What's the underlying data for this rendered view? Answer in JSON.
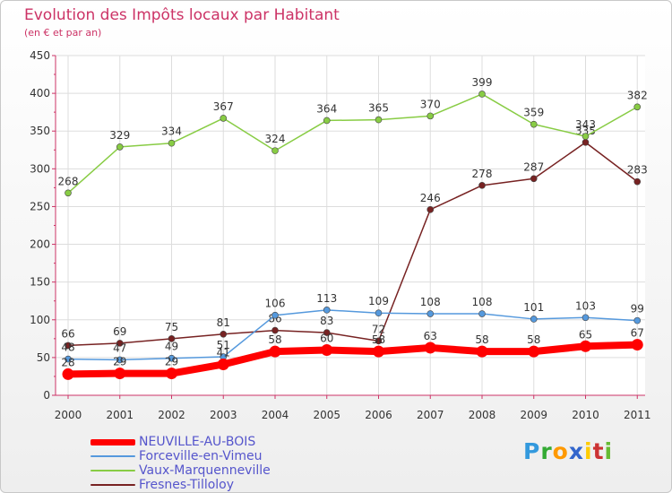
{
  "chart_data": {
    "type": "line",
    "title": "Evolution des Impôts locaux par Habitant",
    "subtitle": "(en € et par an)",
    "x": [
      "2000",
      "2001",
      "2002",
      "2003",
      "2004",
      "2005",
      "2006",
      "2007",
      "2008",
      "2009",
      "2010",
      "2011"
    ],
    "ylim": [
      0,
      450
    ],
    "yticks": [
      0,
      50,
      100,
      150,
      200,
      250,
      300,
      350,
      400,
      450
    ],
    "grid": true,
    "legend_position": "bottom-left",
    "series": [
      {
        "name": "NEUVILLE-AU-BOIS",
        "color": "#ff0000",
        "values": [
          28,
          29,
          29,
          41,
          58,
          60,
          58,
          63,
          58,
          58,
          65,
          67
        ]
      },
      {
        "name": "Forceville-en-Vimeu",
        "color": "#5599dd",
        "values": [
          48,
          47,
          49,
          51,
          106,
          113,
          109,
          108,
          108,
          101,
          103,
          99
        ]
      },
      {
        "name": "Vaux-Marquenneville",
        "color": "#88cc44",
        "values": [
          268,
          329,
          334,
          367,
          324,
          364,
          365,
          370,
          399,
          359,
          343,
          382
        ]
      },
      {
        "name": "Fresnes-Tilloloy",
        "color": "#772222",
        "values": [
          66,
          69,
          75,
          81,
          86,
          83,
          72,
          246,
          278,
          287,
          335,
          283
        ]
      }
    ]
  },
  "logo": {
    "text": "Proxiti",
    "letters": [
      "P",
      "r",
      "o",
      "x",
      "i",
      "t",
      "i"
    ],
    "colors": [
      "#3399dd",
      "#33aa33",
      "#ff9900",
      "#3366cc",
      "#ffcc00",
      "#cc3333",
      "#66bb33"
    ]
  }
}
